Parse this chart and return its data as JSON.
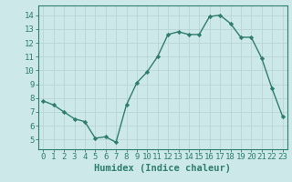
{
  "x": [
    0,
    1,
    2,
    3,
    4,
    5,
    6,
    7,
    8,
    9,
    10,
    11,
    12,
    13,
    14,
    15,
    16,
    17,
    18,
    19,
    20,
    21,
    22,
    23
  ],
  "y": [
    7.8,
    7.5,
    7.0,
    6.5,
    6.3,
    5.1,
    5.2,
    4.8,
    7.5,
    9.1,
    9.9,
    11.0,
    12.6,
    12.8,
    12.6,
    12.6,
    13.9,
    14.0,
    13.4,
    12.4,
    12.4,
    10.9,
    8.7,
    6.7
  ],
  "line_color": "#2e7d6e",
  "bg_color": "#cde8e8",
  "grid_color": "#b8d4d4",
  "xlabel": "Humidex (Indice chaleur)",
  "xlim": [
    -0.5,
    23.5
  ],
  "ylim": [
    4.3,
    14.7
  ],
  "yticks": [
    5,
    6,
    7,
    8,
    9,
    10,
    11,
    12,
    13,
    14
  ],
  "xticks": [
    0,
    1,
    2,
    3,
    4,
    5,
    6,
    7,
    8,
    9,
    10,
    11,
    12,
    13,
    14,
    15,
    16,
    17,
    18,
    19,
    20,
    21,
    22,
    23
  ],
  "xlabel_fontsize": 7.5,
  "tick_fontsize": 6.5,
  "marker": "D",
  "marker_size": 2.2,
  "line_width": 1.0
}
